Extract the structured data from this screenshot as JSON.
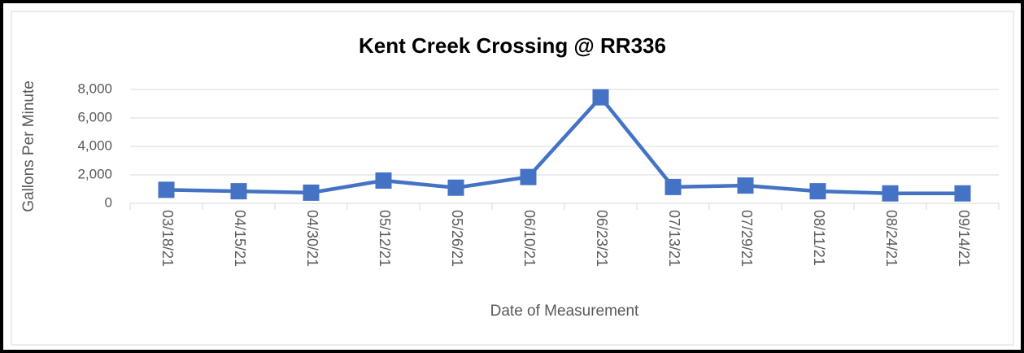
{
  "chart_data": {
    "type": "line",
    "title": "Kent Creek Crossing @ RR336",
    "x_label": "Date of Measurement",
    "y_label": "Gallons Per Minute",
    "categories": [
      "03/18/21",
      "04/15/21",
      "04/30/21",
      "05/12/21",
      "05/26/21",
      "06/10/21",
      "06/23/21",
      "07/13/21",
      "07/29/21",
      "08/11/21",
      "08/24/21",
      "09/14/21"
    ],
    "series": [
      {
        "name": "Gallons Per Minute",
        "color": "#4472c4",
        "values": [
          950,
          850,
          750,
          1600,
          1100,
          1850,
          7450,
          1150,
          1250,
          850,
          700,
          700
        ]
      }
    ],
    "ylim": [
      0,
      8000
    ],
    "yticks": [
      0,
      {
        "value": 2000,
        "label": "2,000"
      },
      {
        "value": 4000,
        "label": "4,000"
      },
      {
        "value": 6000,
        "label": "6,000"
      },
      {
        "value": 8000,
        "label": "8,000"
      }
    ],
    "grid": true
  }
}
